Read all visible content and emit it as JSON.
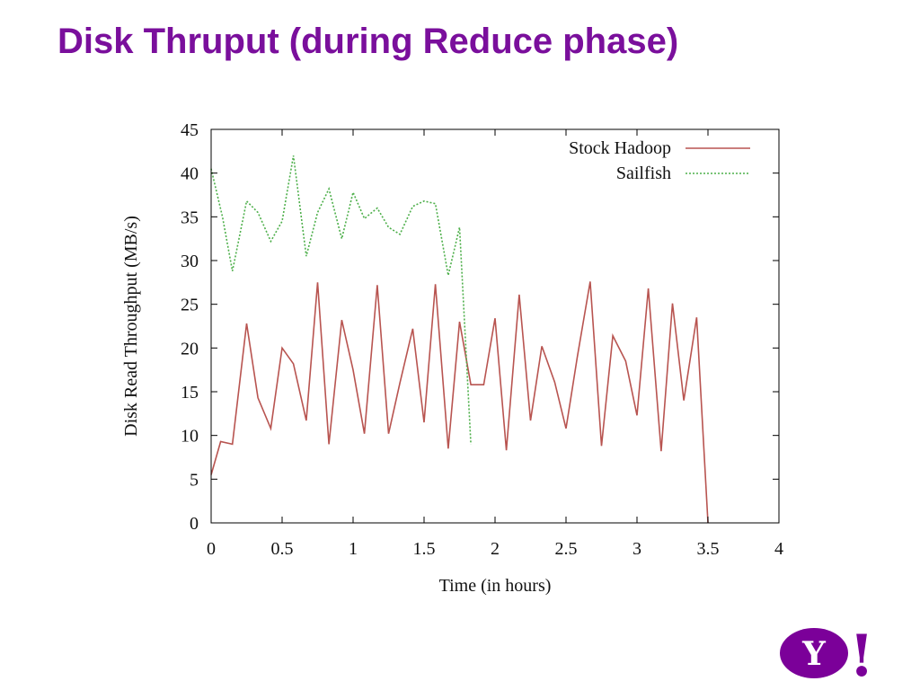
{
  "slide": {
    "title": "Disk Thruput (during Reduce phase)"
  },
  "colors": {
    "title": "#7a0f9c",
    "logo": "#7b0099"
  },
  "logo": {
    "text": "Y!",
    "icon": "yahoo-logo"
  },
  "chart_data": {
    "type": "line",
    "title": "",
    "xlabel": "Time (in hours)",
    "ylabel": "Disk Read Throughput (MB/s)",
    "xlim": [
      0,
      4
    ],
    "ylim": [
      0,
      45
    ],
    "xticks": [
      0,
      0.5,
      1,
      1.5,
      2,
      2.5,
      3,
      3.5,
      4
    ],
    "xtick_labels": [
      "0",
      "0.5",
      "1",
      "1.5",
      "2",
      "2.5",
      "3",
      "3.5",
      "4"
    ],
    "yticks": [
      0,
      5,
      10,
      15,
      20,
      25,
      30,
      35,
      40,
      45
    ],
    "ytick_labels": [
      "0",
      "5",
      "10",
      "15",
      "20",
      "25",
      "30",
      "35",
      "40",
      "45"
    ],
    "grid": false,
    "legend_position": "top-right",
    "series": [
      {
        "name": "Stock Hadoop",
        "color": "#b85450",
        "dash": "solid",
        "x": [
          0,
          0.067,
          0.15,
          0.25,
          0.33,
          0.42,
          0.5,
          0.58,
          0.67,
          0.75,
          0.83,
          0.92,
          1.0,
          1.08,
          1.17,
          1.25,
          1.33,
          1.42,
          1.5,
          1.58,
          1.67,
          1.75,
          1.83,
          1.92,
          2.0,
          2.08,
          2.17,
          2.25,
          2.33,
          2.42,
          2.5,
          2.58,
          2.67,
          2.75,
          2.83,
          2.92,
          3.0,
          3.08,
          3.17,
          3.25,
          3.33,
          3.42,
          3.5
        ],
        "y": [
          5.5,
          9.3,
          9.0,
          22.8,
          14.3,
          10.8,
          20.0,
          18.2,
          11.7,
          27.5,
          9.0,
          23.2,
          17.5,
          10.2,
          27.2,
          10.2,
          16.0,
          22.2,
          11.5,
          27.3,
          8.5,
          23.0,
          15.8,
          15.8,
          23.4,
          8.3,
          26.1,
          11.7,
          20.2,
          16.1,
          10.8,
          19.0,
          27.6,
          8.8,
          21.4,
          18.5,
          12.3,
          26.8,
          8.2,
          25.1,
          14.0,
          23.5,
          0
        ]
      },
      {
        "name": "Sailfish",
        "color": "#4daf4a",
        "dash": "dotted",
        "x": [
          0,
          0.08,
          0.15,
          0.25,
          0.33,
          0.42,
          0.5,
          0.58,
          0.67,
          0.75,
          0.83,
          0.92,
          1.0,
          1.08,
          1.17,
          1.25,
          1.33,
          1.42,
          1.5,
          1.58,
          1.67,
          1.75,
          1.83
        ],
        "y": [
          40.5,
          35.0,
          28.8,
          36.8,
          35.5,
          32.2,
          34.5,
          42.0,
          30.5,
          35.5,
          38.2,
          32.5,
          37.8,
          34.8,
          36.0,
          33.8,
          33.0,
          36.2,
          36.8,
          36.5,
          28.3,
          33.8,
          9.0
        ]
      }
    ]
  }
}
